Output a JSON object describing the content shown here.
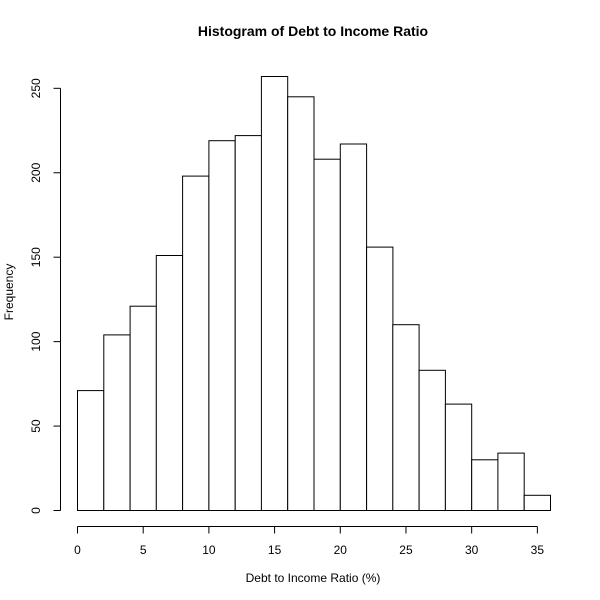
{
  "chart_data": {
    "type": "bar",
    "title": "Histogram of Debt to Income Ratio",
    "xlabel": "Debt to Income Ratio (%)",
    "ylabel": "Frequency",
    "bin_edges": [
      0,
      2,
      4,
      6,
      8,
      10,
      12,
      14,
      16,
      18,
      20,
      22,
      24,
      26,
      28,
      30,
      32,
      34,
      36
    ],
    "values": [
      71,
      104,
      121,
      151,
      198,
      219,
      222,
      257,
      245,
      208,
      217,
      156,
      110,
      83,
      63,
      30,
      34,
      9
    ],
    "xlim": [
      0,
      36
    ],
    "ylim": [
      0,
      257
    ],
    "x_ticks": [
      0,
      5,
      10,
      15,
      20,
      25,
      30,
      35
    ],
    "y_ticks": [
      0,
      50,
      100,
      150,
      200,
      250
    ],
    "grid": false,
    "legend": "none"
  }
}
